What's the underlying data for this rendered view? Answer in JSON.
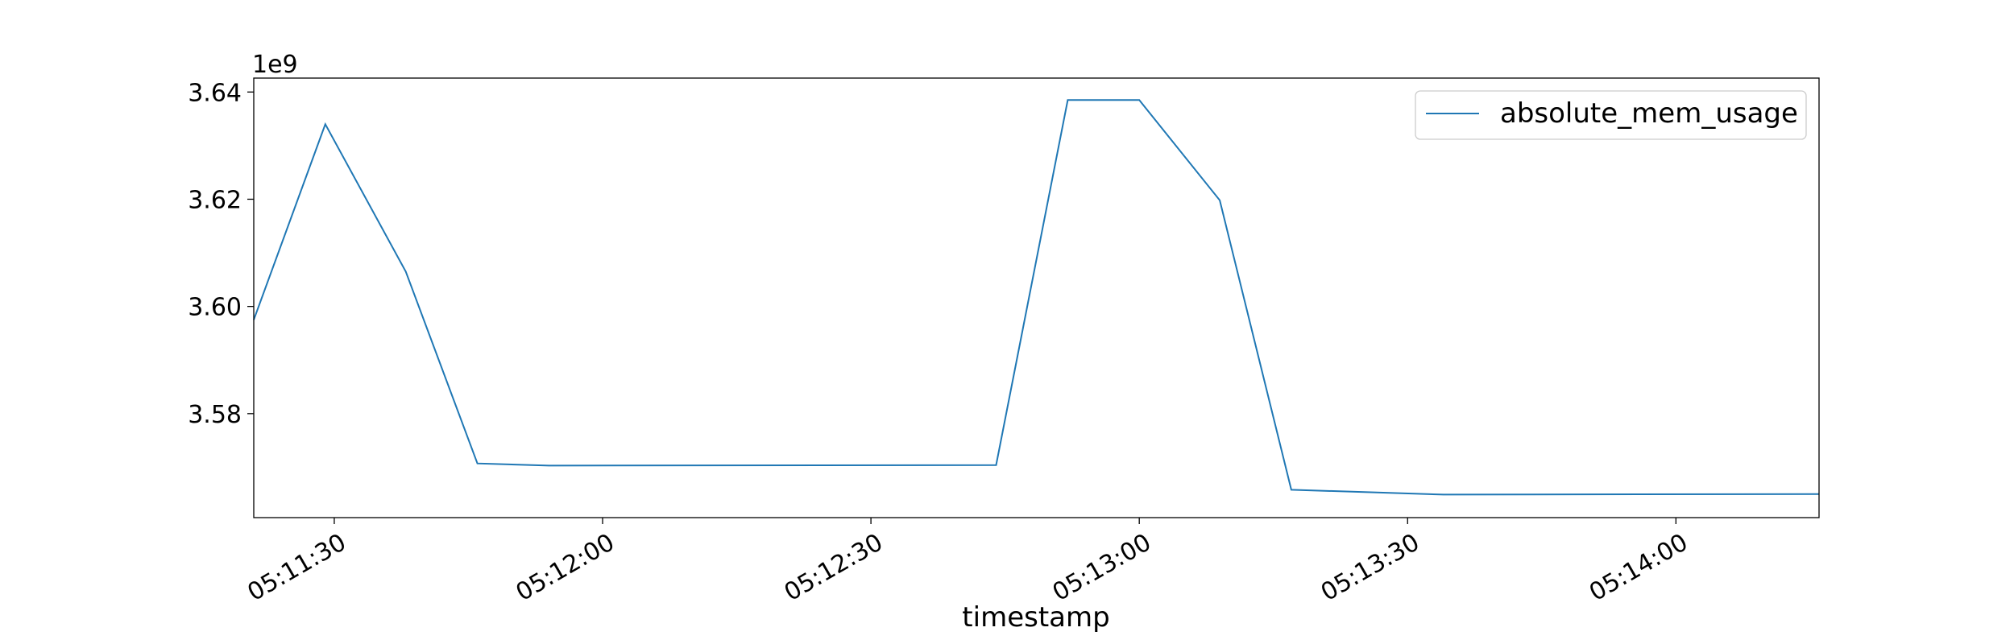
{
  "chart_data": {
    "type": "line",
    "xlabel": "timestamp",
    "ylabel": "",
    "y_offset_label": "1e9",
    "legend_position": "top-right",
    "grid": false,
    "xlim": [
      "05:11:21",
      "05:14:16"
    ],
    "ylim": [
      3.5606,
      3.6426
    ],
    "x_ticks": [
      "05:11:30",
      "05:12:00",
      "05:12:30",
      "05:13:00",
      "05:13:30",
      "05:14:00"
    ],
    "y_ticks": [
      {
        "value": 3.58,
        "label": "3.58"
      },
      {
        "value": 3.6,
        "label": "3.60"
      },
      {
        "value": 3.62,
        "label": "3.62"
      },
      {
        "value": 3.64,
        "label": "3.64"
      }
    ],
    "series": [
      {
        "name": "absolute_mem_usage",
        "color": "#1f77b4",
        "x": [
          "05:11:21",
          "05:11:29",
          "05:11:38",
          "05:11:46",
          "05:11:54",
          "05:12:44",
          "05:12:52",
          "05:13:00",
          "05:13:09",
          "05:13:17",
          "05:13:34",
          "05:14:16"
        ],
        "values": [
          3.5975,
          3.634,
          3.6065,
          3.5707,
          3.5703,
          3.5704,
          3.6385,
          3.6385,
          3.6198,
          3.5658,
          3.5649,
          3.565
        ]
      }
    ]
  }
}
